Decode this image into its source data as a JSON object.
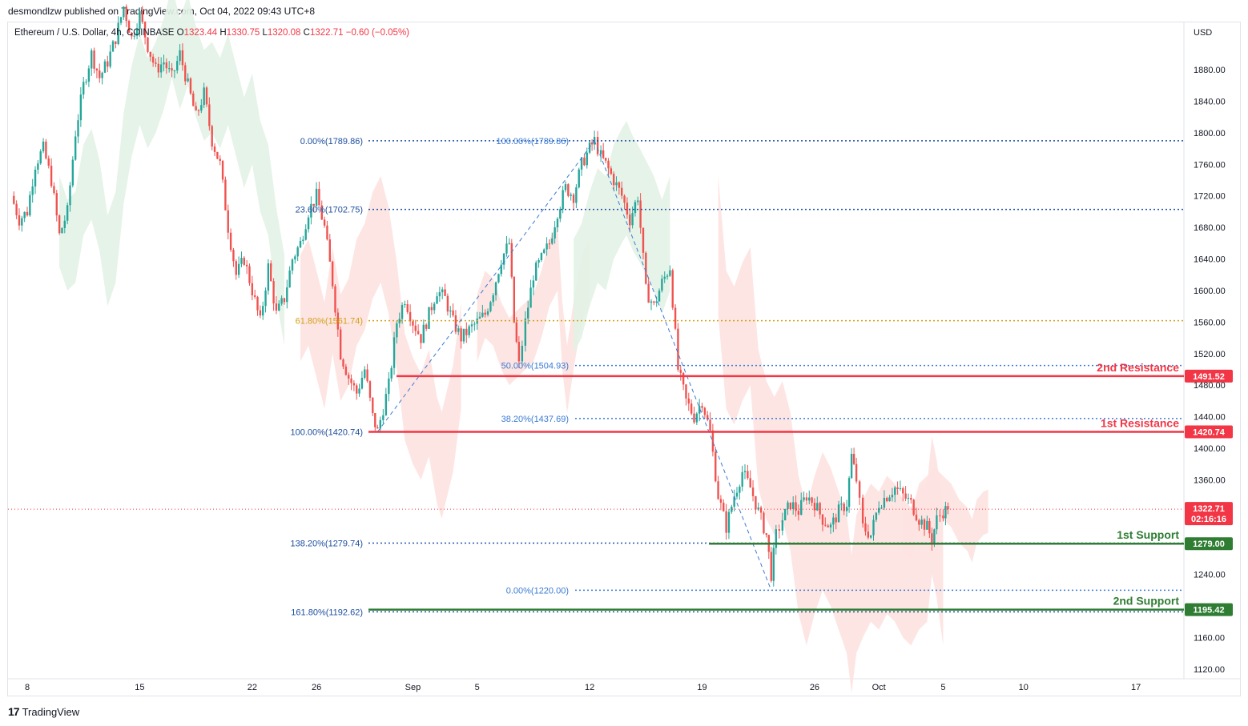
{
  "header": {
    "publisher": "desmondlzw published on TradingView.com, Oct 04, 2022 09:43 UTC+8"
  },
  "symbol": {
    "name": "Ethereum / U.S. Dollar, 4h, COINBASE",
    "o_label": "O",
    "o_value": "1323.44",
    "h_label": "H",
    "h_value": "1330.75",
    "l_label": "L",
    "l_value": "1320.08",
    "c_label": "C",
    "c_value": "1322.71",
    "change": "−0.60 (−0.05%)"
  },
  "currency": "USD",
  "footer": {
    "brand": "TradingView",
    "logo": "17"
  },
  "chart_data": {
    "type": "candlestick",
    "title": "Ethereum / U.S. Dollar, 4h, COINBASE",
    "ylim": [
      1100,
      1940
    ],
    "y_ticks": [
      1880,
      1840,
      1800,
      1760,
      1720,
      1680,
      1640,
      1600,
      1560,
      1520,
      1480,
      1440,
      1400,
      1360,
      1240,
      1160,
      1120
    ],
    "y_tick_labels": [
      "1880.00",
      "1840.00",
      "1800.00",
      "1760.00",
      "1720.00",
      "1680.00",
      "1640.00",
      "1600.00",
      "1560.00",
      "1520.00",
      "1480.00",
      "1440.00",
      "1400.00",
      "1360.00",
      "1240.00",
      "1160.00",
      "1120.00"
    ],
    "x_ticks": [
      {
        "label": "8",
        "day": 8
      },
      {
        "label": "15",
        "day": 15
      },
      {
        "label": "22",
        "day": 22
      },
      {
        "label": "26",
        "day": 26
      },
      {
        "label": "Sep",
        "day": 32
      },
      {
        "label": "5",
        "day": 36
      },
      {
        "label": "12",
        "day": 43
      },
      {
        "label": "19",
        "day": 50
      },
      {
        "label": "26",
        "day": 57
      },
      {
        "label": "Oct",
        "day": 61
      },
      {
        "label": "5",
        "day": 65
      },
      {
        "label": "10",
        "day": 70
      },
      {
        "label": "17",
        "day": 77
      }
    ],
    "last_price": 1322.71,
    "countdown": "02:16:16",
    "price_path": [
      [
        7.0,
        1720
      ],
      [
        7.5,
        1690
      ],
      [
        8.0,
        1700
      ],
      [
        8.5,
        1760
      ],
      [
        9.0,
        1780
      ],
      [
        9.5,
        1740
      ],
      [
        10.0,
        1670
      ],
      [
        10.5,
        1700
      ],
      [
        11.0,
        1800
      ],
      [
        11.5,
        1860
      ],
      [
        12.0,
        1900
      ],
      [
        12.5,
        1870
      ],
      [
        13.0,
        1890
      ],
      [
        13.5,
        1920
      ],
      [
        14.0,
        1960
      ],
      [
        14.5,
        1920
      ],
      [
        15.0,
        1950
      ],
      [
        15.5,
        1910
      ],
      [
        16.0,
        1880
      ],
      [
        16.5,
        1890
      ],
      [
        17.0,
        1870
      ],
      [
        17.5,
        1900
      ],
      [
        18.0,
        1860
      ],
      [
        18.5,
        1820
      ],
      [
        19.0,
        1850
      ],
      [
        19.5,
        1790
      ],
      [
        20.0,
        1760
      ],
      [
        20.5,
        1680
      ],
      [
        21.0,
        1620
      ],
      [
        21.5,
        1640
      ],
      [
        22.0,
        1600
      ],
      [
        22.5,
        1560
      ],
      [
        23.0,
        1630
      ],
      [
        23.5,
        1570
      ],
      [
        24.0,
        1590
      ],
      [
        24.5,
        1640
      ],
      [
        25.0,
        1660
      ],
      [
        25.5,
        1700
      ],
      [
        26.0,
        1720
      ],
      [
        26.5,
        1680
      ],
      [
        27.0,
        1610
      ],
      [
        27.5,
        1520
      ],
      [
        28.0,
        1490
      ],
      [
        28.5,
        1470
      ],
      [
        29.0,
        1500
      ],
      [
        29.5,
        1440
      ],
      [
        29.8,
        1421
      ],
      [
        30.5,
        1480
      ],
      [
        31.0,
        1560
      ],
      [
        31.5,
        1590
      ],
      [
        32.0,
        1560
      ],
      [
        32.5,
        1540
      ],
      [
        33.0,
        1570
      ],
      [
        33.5,
        1600
      ],
      [
        34.0,
        1590
      ],
      [
        34.5,
        1560
      ],
      [
        35.0,
        1540
      ],
      [
        35.5,
        1550
      ],
      [
        36.0,
        1560
      ],
      [
        36.5,
        1570
      ],
      [
        37.0,
        1600
      ],
      [
        37.5,
        1640
      ],
      [
        38.0,
        1660
      ],
      [
        38.3,
        1560
      ],
      [
        38.6,
        1505
      ],
      [
        39.0,
        1560
      ],
      [
        39.5,
        1620
      ],
      [
        40.0,
        1640
      ],
      [
        40.5,
        1660
      ],
      [
        41.0,
        1700
      ],
      [
        41.5,
        1730
      ],
      [
        42.0,
        1720
      ],
      [
        42.5,
        1760
      ],
      [
        43.0,
        1780
      ],
      [
        43.3,
        1790
      ],
      [
        43.7,
        1770
      ],
      [
        44.0,
        1760
      ],
      [
        44.5,
        1740
      ],
      [
        45.0,
        1720
      ],
      [
        45.5,
        1690
      ],
      [
        46.0,
        1720
      ],
      [
        46.5,
        1600
      ],
      [
        47.0,
        1580
      ],
      [
        47.5,
        1610
      ],
      [
        48.0,
        1630
      ],
      [
        48.5,
        1500
      ],
      [
        49.0,
        1460
      ],
      [
        49.5,
        1440
      ],
      [
        50.0,
        1460
      ],
      [
        50.5,
        1420
      ],
      [
        51.0,
        1340
      ],
      [
        51.5,
        1300
      ],
      [
        52.0,
        1340
      ],
      [
        52.5,
        1370
      ],
      [
        53.0,
        1350
      ],
      [
        53.5,
        1320
      ],
      [
        54.0,
        1290
      ],
      [
        54.3,
        1240
      ],
      [
        54.6,
        1290
      ],
      [
        55.0,
        1310
      ],
      [
        55.5,
        1330
      ],
      [
        56.0,
        1320
      ],
      [
        56.5,
        1340
      ],
      [
        57.0,
        1330
      ],
      [
        57.5,
        1310
      ],
      [
        58.0,
        1300
      ],
      [
        58.5,
        1320
      ],
      [
        59.0,
        1330
      ],
      [
        59.3,
        1390
      ],
      [
        59.6,
        1360
      ],
      [
        60.0,
        1300
      ],
      [
        60.5,
        1290
      ],
      [
        61.0,
        1330
      ],
      [
        61.5,
        1340
      ],
      [
        62.0,
        1350
      ],
      [
        62.5,
        1340
      ],
      [
        63.0,
        1330
      ],
      [
        63.5,
        1310
      ],
      [
        64.0,
        1300
      ],
      [
        64.3,
        1285
      ],
      [
        64.6,
        1310
      ],
      [
        65.0,
        1320
      ],
      [
        65.3,
        1322.71
      ]
    ],
    "fib_levels": [
      {
        "label": "0.00%(1789.86)",
        "price": 1789.86,
        "color": "#1e4fa0"
      },
      {
        "label": "23.60%(1702.75)",
        "price": 1702.75,
        "color": "#1e4fa0"
      },
      {
        "label": "61.80%(1561.74)",
        "price": 1561.74,
        "color": "#d4a017"
      },
      {
        "label": "100.00%(1420.74)",
        "price": 1420.74,
        "color": "#1e4fa0"
      },
      {
        "label": "138.20%(1279.74)",
        "price": 1279.74,
        "color": "#1e4fa0"
      },
      {
        "label": "161.80%(1192.62)",
        "price": 1192.62,
        "color": "#1e4fa0"
      },
      {
        "label": "100.00%(1789.86)",
        "price": 1789.86,
        "color": "#3a7bd5"
      },
      {
        "label": "50.00%(1504.93)",
        "price": 1504.93,
        "color": "#3a7bd5"
      },
      {
        "label": "38.20%(1437.69)",
        "price": 1437.69,
        "color": "#3a7bd5"
      },
      {
        "label": "0.00%(1220.00)",
        "price": 1220.0,
        "color": "#3a7bd5"
      }
    ],
    "zones": [
      {
        "label": "2nd Resistance",
        "price": 1491.52,
        "tag": "1491.52",
        "color": "#f23645"
      },
      {
        "label": "1st Resistance",
        "price": 1420.74,
        "tag": "1420.74",
        "color": "#f23645"
      },
      {
        "label": "1st Support",
        "price": 1279.0,
        "tag": "1279.00",
        "color": "#2e7d32"
      },
      {
        "label": "2nd Support",
        "price": 1195.42,
        "tag": "1195.42",
        "color": "#2e7d32"
      }
    ],
    "colors": {
      "up": "#26a69a",
      "down": "#ef5350",
      "cloud_up": "#e3f2e6",
      "cloud_down": "#fde2e0",
      "grid": "#f0f3fa"
    }
  }
}
